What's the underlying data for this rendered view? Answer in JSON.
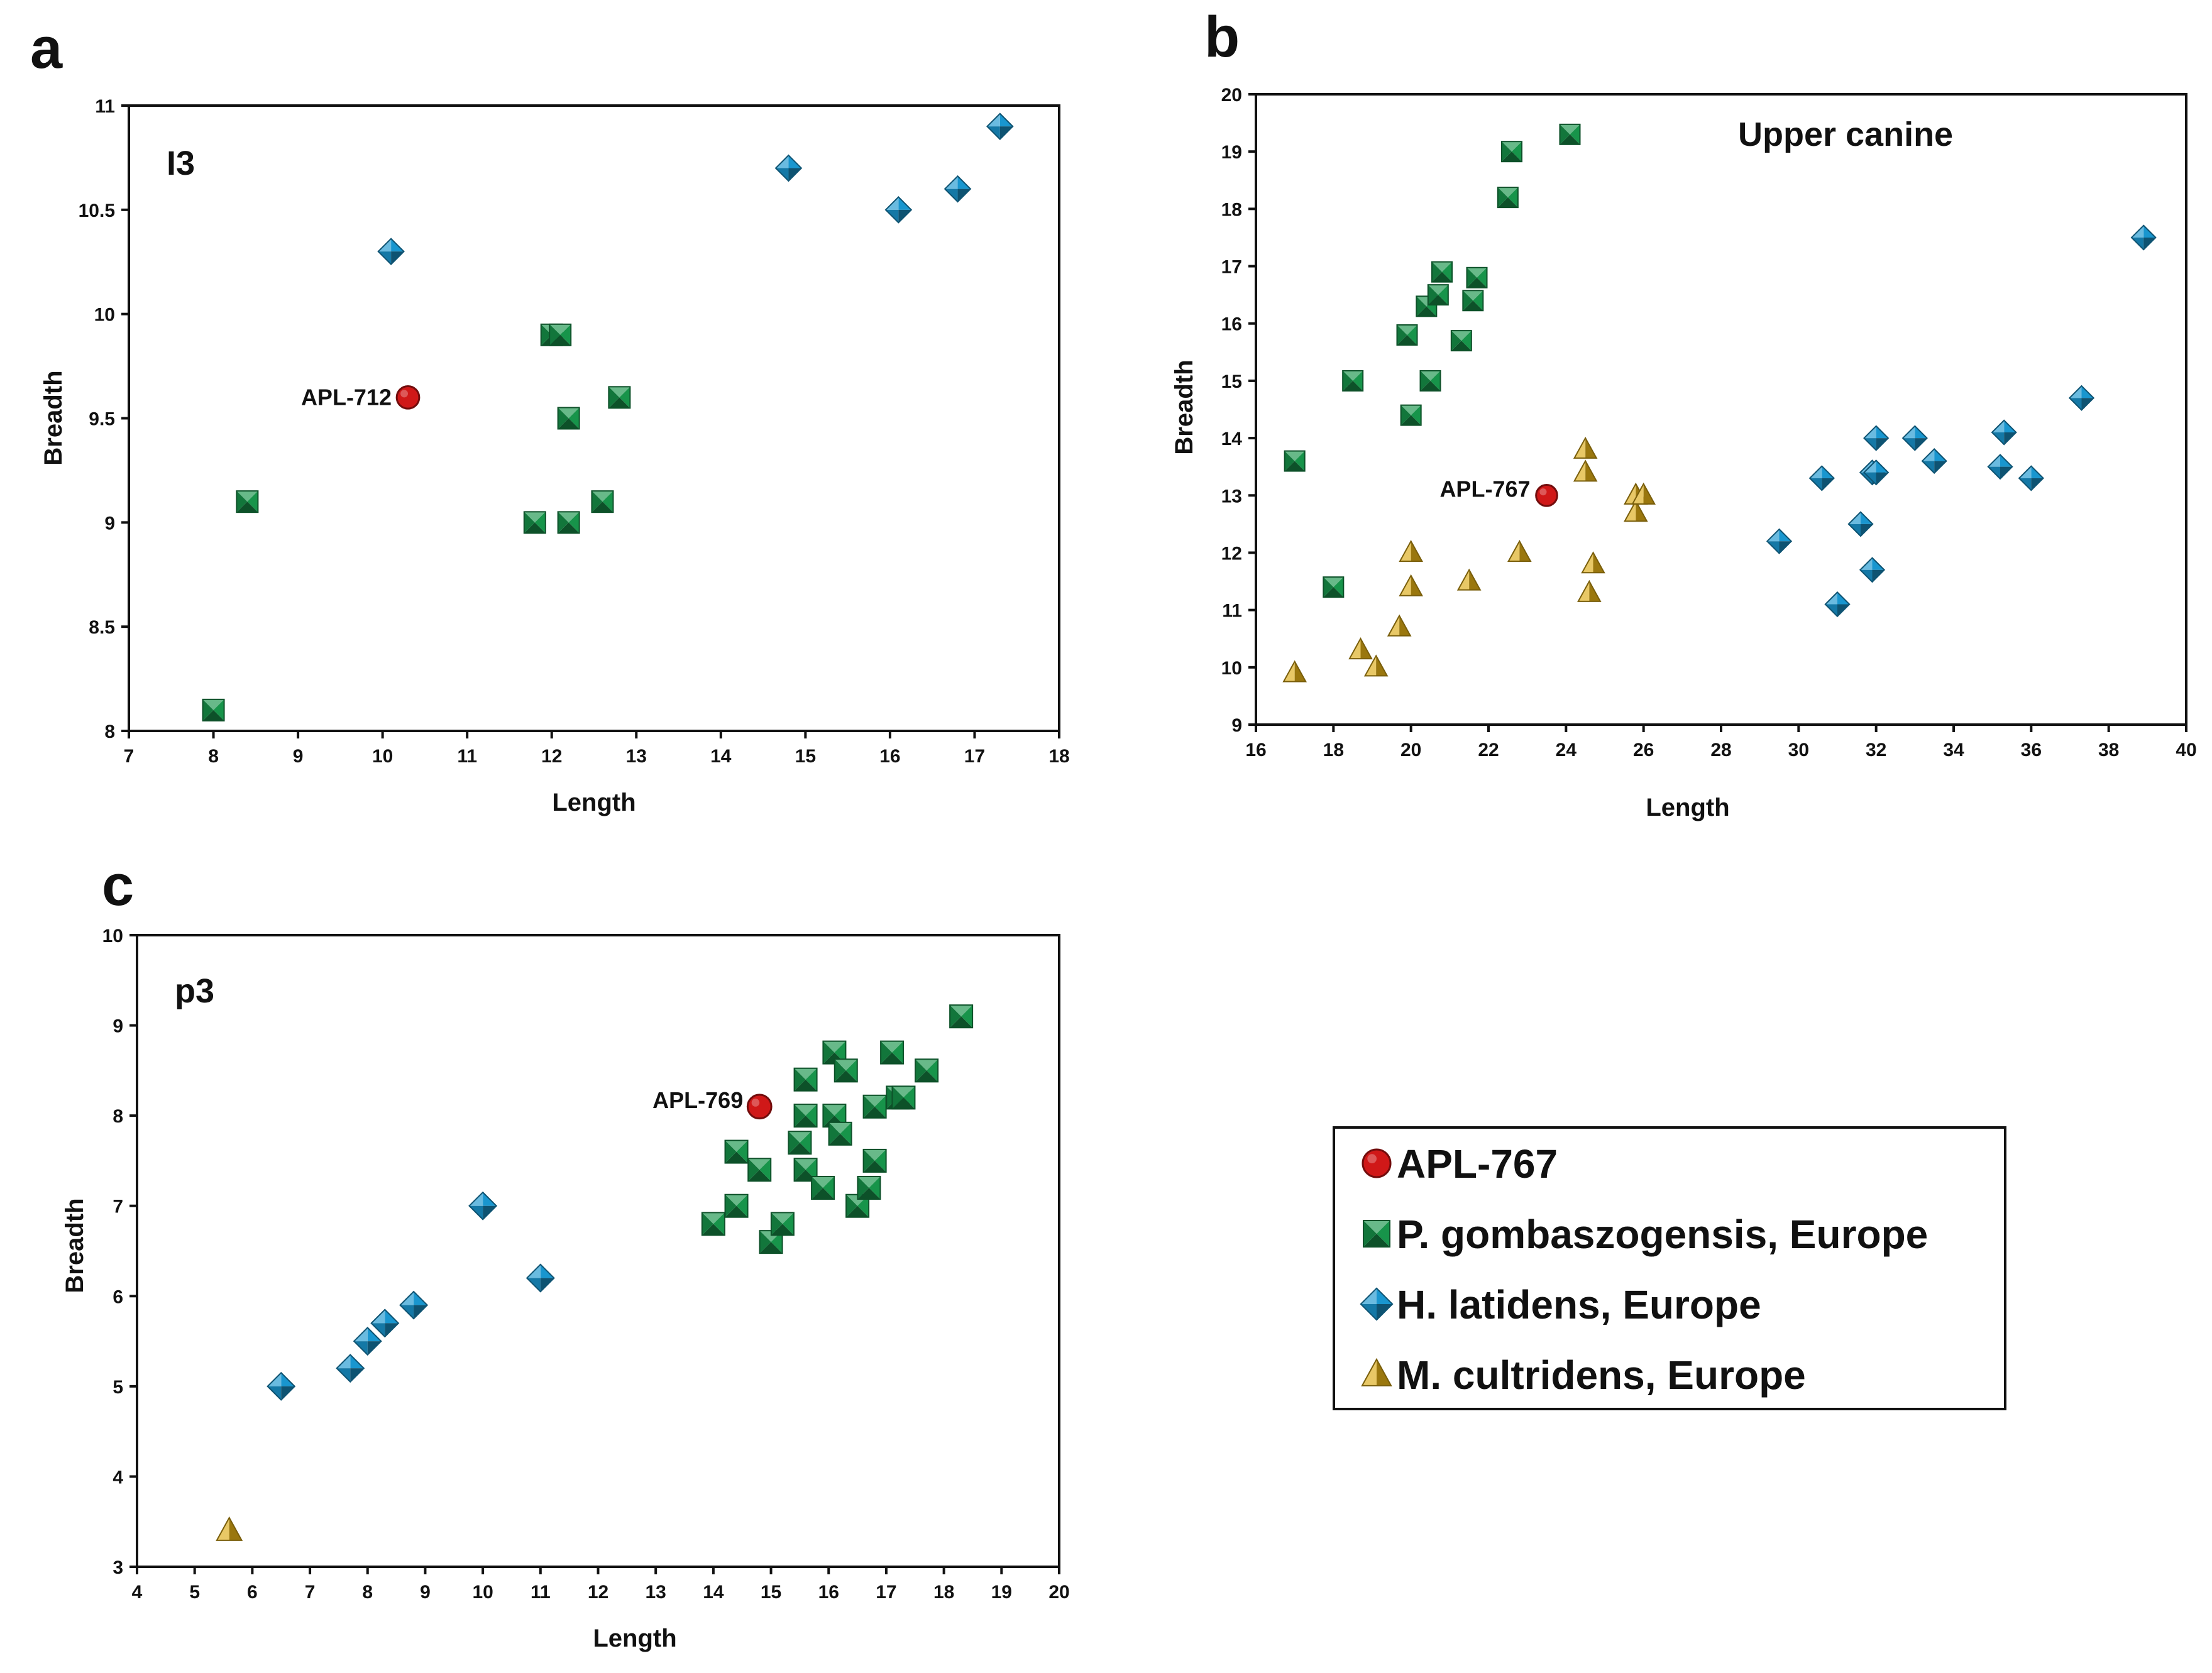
{
  "figure": {
    "panel_letters": [
      "a",
      "b",
      "c"
    ],
    "legend": [
      {
        "label": "APL-767",
        "series": "APL"
      },
      {
        "label": "P. gombaszogensis, Europe",
        "series": "P. gombaszogensis"
      },
      {
        "label": "H. latidens, Europe",
        "series": "H. latidens"
      },
      {
        "label": "M. cultridens, Europe",
        "series": "M. cultridens"
      }
    ]
  },
  "colors": {
    "APL": "#d01818",
    "P. gombaszogensis": "#17944a",
    "H. latidens": "#1996cf",
    "M. cultridens": "#dcaa14"
  },
  "chart_data": [
    {
      "panel": "a",
      "type": "scatter",
      "title": "I3",
      "xlabel": "Length",
      "ylabel": "Breadth",
      "xlim": [
        7,
        18
      ],
      "ylim": [
        8,
        11
      ],
      "xticks": [
        7,
        8,
        9,
        10,
        11,
        12,
        13,
        14,
        15,
        16,
        17,
        18
      ],
      "yticks": [
        8,
        8.5,
        9,
        9.5,
        10,
        10.5,
        11
      ],
      "annotations": [
        {
          "text": "APL-712",
          "x": 10.3,
          "y": 9.6
        }
      ],
      "series": [
        {
          "name": "APL",
          "marker": "circle",
          "points": [
            [
              10.3,
              9.6
            ]
          ]
        },
        {
          "name": "P. gombaszogensis",
          "marker": "square",
          "points": [
            [
              8.0,
              8.1
            ],
            [
              8.4,
              9.1
            ],
            [
              11.8,
              9.0
            ],
            [
              12.2,
              9.0
            ],
            [
              12.6,
              9.1
            ],
            [
              12.0,
              9.9
            ],
            [
              12.1,
              9.9
            ],
            [
              12.2,
              9.5
            ],
            [
              12.8,
              9.6
            ]
          ]
        },
        {
          "name": "H. latidens",
          "marker": "diamond",
          "points": [
            [
              10.1,
              10.3
            ],
            [
              14.8,
              10.7
            ],
            [
              16.1,
              10.5
            ],
            [
              16.8,
              10.6
            ],
            [
              17.3,
              10.9
            ]
          ]
        }
      ]
    },
    {
      "panel": "b",
      "type": "scatter",
      "title": "Upper canine",
      "xlabel": "Length",
      "ylabel": "Breadth",
      "xlim": [
        16,
        40
      ],
      "ylim": [
        9,
        20
      ],
      "xticks": [
        16,
        18,
        20,
        22,
        24,
        26,
        28,
        30,
        32,
        34,
        36,
        38,
        40
      ],
      "yticks": [
        9,
        10,
        11,
        12,
        13,
        14,
        15,
        16,
        17,
        18,
        19,
        20
      ],
      "annotations": [
        {
          "text": "APL-767",
          "x": 23.5,
          "y": 13.0
        }
      ],
      "series": [
        {
          "name": "APL",
          "marker": "circle",
          "points": [
            [
              23.5,
              13.0
            ]
          ]
        },
        {
          "name": "P. gombaszogensis",
          "marker": "square",
          "points": [
            [
              17.0,
              13.6
            ],
            [
              18.0,
              11.4
            ],
            [
              18.5,
              15.0
            ],
            [
              19.9,
              15.8
            ],
            [
              20.0,
              14.4
            ],
            [
              20.4,
              16.3
            ],
            [
              20.5,
              15.0
            ],
            [
              20.7,
              16.5
            ],
            [
              20.8,
              16.9
            ],
            [
              21.3,
              15.7
            ],
            [
              21.6,
              16.4
            ],
            [
              21.7,
              16.8
            ],
            [
              22.5,
              18.2
            ],
            [
              22.6,
              19.0
            ],
            [
              24.1,
              19.3
            ]
          ]
        },
        {
          "name": "H. latidens",
          "marker": "diamond",
          "points": [
            [
              29.5,
              12.2
            ],
            [
              30.6,
              13.3
            ],
            [
              31.0,
              11.1
            ],
            [
              31.6,
              12.5
            ],
            [
              31.9,
              11.7
            ],
            [
              31.9,
              13.4
            ],
            [
              32.0,
              13.4
            ],
            [
              32.0,
              14.0
            ],
            [
              33.0,
              14.0
            ],
            [
              33.5,
              13.6
            ],
            [
              35.2,
              13.5
            ],
            [
              35.3,
              14.1
            ],
            [
              36.0,
              13.3
            ],
            [
              37.3,
              14.7
            ],
            [
              38.9,
              17.5
            ]
          ]
        },
        {
          "name": "M. cultridens",
          "marker": "triangle",
          "points": [
            [
              17.0,
              9.9
            ],
            [
              18.7,
              10.3
            ],
            [
              19.1,
              10.0
            ],
            [
              19.7,
              10.7
            ],
            [
              20.0,
              12.0
            ],
            [
              20.0,
              11.4
            ],
            [
              21.5,
              11.5
            ],
            [
              22.8,
              12.0
            ],
            [
              24.5,
              13.8
            ],
            [
              24.5,
              13.4
            ],
            [
              24.6,
              11.3
            ],
            [
              24.7,
              11.8
            ],
            [
              25.8,
              12.7
            ],
            [
              25.8,
              13.0
            ],
            [
              26.0,
              13.0
            ]
          ]
        }
      ]
    },
    {
      "panel": "c",
      "type": "scatter",
      "title": "p3",
      "xlabel": "Length",
      "ylabel": "Breadth",
      "xlim": [
        4,
        20
      ],
      "ylim": [
        3,
        10
      ],
      "xticks": [
        4,
        5,
        6,
        7,
        8,
        9,
        10,
        11,
        12,
        13,
        14,
        15,
        16,
        17,
        18,
        19,
        20
      ],
      "yticks": [
        3,
        4,
        5,
        6,
        7,
        8,
        9,
        10
      ],
      "annotations": [
        {
          "text": "APL-769",
          "x": 14.8,
          "y": 8.1
        }
      ],
      "series": [
        {
          "name": "APL",
          "marker": "circle",
          "points": [
            [
              14.8,
              8.1
            ]
          ]
        },
        {
          "name": "P. gombaszogensis",
          "marker": "square",
          "points": [
            [
              14.0,
              6.8
            ],
            [
              14.4,
              7.0
            ],
            [
              14.4,
              7.6
            ],
            [
              14.8,
              7.4
            ],
            [
              15.0,
              6.6
            ],
            [
              15.2,
              6.8
            ],
            [
              15.5,
              7.7
            ],
            [
              15.6,
              7.4
            ],
            [
              15.6,
              8.4
            ],
            [
              15.6,
              8.0
            ],
            [
              15.9,
              7.2
            ],
            [
              16.1,
              8.0
            ],
            [
              16.1,
              8.7
            ],
            [
              16.2,
              7.8
            ],
            [
              16.3,
              8.5
            ],
            [
              16.5,
              7.0
            ],
            [
              16.7,
              7.2
            ],
            [
              16.8,
              7.5
            ],
            [
              16.8,
              8.1
            ],
            [
              17.1,
              8.7
            ],
            [
              17.2,
              8.2
            ],
            [
              17.3,
              8.2
            ],
            [
              17.7,
              8.5
            ],
            [
              18.3,
              9.1
            ]
          ]
        },
        {
          "name": "H. latidens",
          "marker": "diamond",
          "points": [
            [
              6.5,
              5.0
            ],
            [
              7.7,
              5.2
            ],
            [
              8.0,
              5.5
            ],
            [
              8.3,
              5.7
            ],
            [
              8.8,
              5.9
            ],
            [
              10.0,
              7.0
            ],
            [
              11.0,
              6.2
            ]
          ]
        },
        {
          "name": "M. cultridens",
          "marker": "triangle",
          "points": [
            [
              5.6,
              3.4
            ]
          ]
        }
      ]
    }
  ]
}
